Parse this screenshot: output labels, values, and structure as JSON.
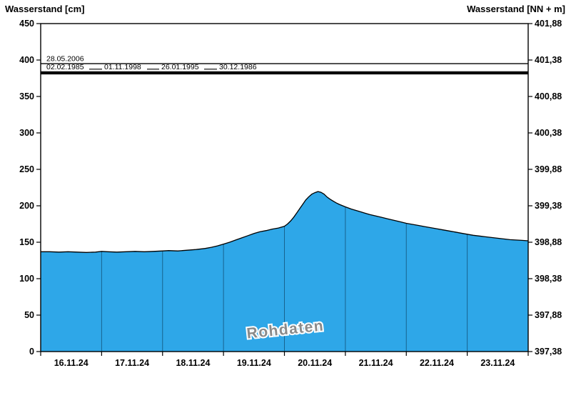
{
  "header": {
    "left_title": "Wasserstand [cm]",
    "right_title": "Wasserstand [NN + m]"
  },
  "chart_data": {
    "type": "area",
    "title": "",
    "ylabel_left": "Wasserstand [cm]",
    "ylabel_right": "Wasserstand [NN + m]",
    "ylim_left": [
      0,
      450
    ],
    "yticks_left": [
      0,
      50,
      100,
      150,
      200,
      250,
      300,
      350,
      400,
      450
    ],
    "ylim_right": [
      397.38,
      401.88
    ],
    "yticks_right": [
      "397,38",
      "397,88",
      "398,38",
      "398,88",
      "399,38",
      "399,88",
      "400,38",
      "400,88",
      "401,38",
      "401,88"
    ],
    "x_categories": [
      "16.11.24",
      "17.11.24",
      "18.11.24",
      "19.11.24",
      "20.11.24",
      "21.11.24",
      "22.11.24",
      "23.11.24"
    ],
    "x_span_days": 8,
    "grid": false,
    "watermark": "Rohdaten",
    "colors": {
      "area_fill": "#2ea7e8",
      "series_outline": "#000000",
      "day_separator": "#14587f",
      "reference_line": "#000000",
      "watermark_fill": "#8a8a8a",
      "watermark_halo": "#ffffff"
    },
    "reference_lines": [
      {
        "label": "28.05.2006",
        "value_cm": 395.0,
        "stroke_width": 1.4
      },
      {
        "label": "02.02.1985",
        "value_cm": 384.0,
        "stroke_width": 1.2
      },
      {
        "label": "01.11.1998",
        "value_cm": 383.0,
        "stroke_width": 1.2
      },
      {
        "label": "26.01.1995",
        "value_cm": 382.5,
        "stroke_width": 1.2
      },
      {
        "label": "30.12.1986",
        "value_cm": 381.5,
        "stroke_width": 2.4
      }
    ],
    "series": [
      {
        "name": "Wasserstand Rohdaten",
        "unit": "cm",
        "points": [
          [
            0.0,
            137
          ],
          [
            0.15,
            137
          ],
          [
            0.3,
            136.5
          ],
          [
            0.45,
            137
          ],
          [
            0.6,
            136.5
          ],
          [
            0.75,
            136
          ],
          [
            0.9,
            136.5
          ],
          [
            1.0,
            137.5
          ],
          [
            1.1,
            137
          ],
          [
            1.25,
            136.5
          ],
          [
            1.4,
            137
          ],
          [
            1.55,
            137.5
          ],
          [
            1.7,
            137
          ],
          [
            1.85,
            137.5
          ],
          [
            2.0,
            138
          ],
          [
            2.1,
            138.5
          ],
          [
            2.25,
            138
          ],
          [
            2.4,
            139
          ],
          [
            2.55,
            140
          ],
          [
            2.7,
            141.5
          ],
          [
            2.8,
            143
          ],
          [
            2.9,
            145
          ],
          [
            3.0,
            147.5
          ],
          [
            3.1,
            150
          ],
          [
            3.2,
            153
          ],
          [
            3.3,
            156
          ],
          [
            3.4,
            159
          ],
          [
            3.5,
            162
          ],
          [
            3.6,
            164.5
          ],
          [
            3.7,
            166
          ],
          [
            3.8,
            168
          ],
          [
            3.9,
            169.5
          ],
          [
            4.0,
            172
          ],
          [
            4.05,
            175
          ],
          [
            4.1,
            179
          ],
          [
            4.15,
            184
          ],
          [
            4.2,
            190
          ],
          [
            4.25,
            196
          ],
          [
            4.3,
            202
          ],
          [
            4.35,
            208
          ],
          [
            4.4,
            212.5
          ],
          [
            4.45,
            216
          ],
          [
            4.5,
            218
          ],
          [
            4.55,
            219.5
          ],
          [
            4.6,
            218.5
          ],
          [
            4.65,
            216
          ],
          [
            4.7,
            212
          ],
          [
            4.75,
            209
          ],
          [
            4.8,
            206.5
          ],
          [
            4.85,
            204
          ],
          [
            4.9,
            202
          ],
          [
            5.0,
            198.5
          ],
          [
            5.1,
            195.5
          ],
          [
            5.2,
            193
          ],
          [
            5.3,
            190.5
          ],
          [
            5.4,
            188
          ],
          [
            5.5,
            186
          ],
          [
            5.6,
            184
          ],
          [
            5.7,
            182
          ],
          [
            5.8,
            180
          ],
          [
            5.9,
            178
          ],
          [
            6.0,
            176
          ],
          [
            6.1,
            174.5
          ],
          [
            6.2,
            173
          ],
          [
            6.3,
            171.5
          ],
          [
            6.4,
            170
          ],
          [
            6.5,
            168.5
          ],
          [
            6.6,
            167
          ],
          [
            6.7,
            165.5
          ],
          [
            6.8,
            164
          ],
          [
            6.9,
            162.5
          ],
          [
            7.0,
            161
          ],
          [
            7.1,
            159.5
          ],
          [
            7.2,
            158.5
          ],
          [
            7.3,
            157.5
          ],
          [
            7.4,
            156.5
          ],
          [
            7.5,
            155.5
          ],
          [
            7.6,
            154.5
          ],
          [
            7.7,
            153.5
          ],
          [
            7.8,
            153
          ],
          [
            7.9,
            152.5
          ],
          [
            8.0,
            152
          ]
        ]
      }
    ]
  }
}
